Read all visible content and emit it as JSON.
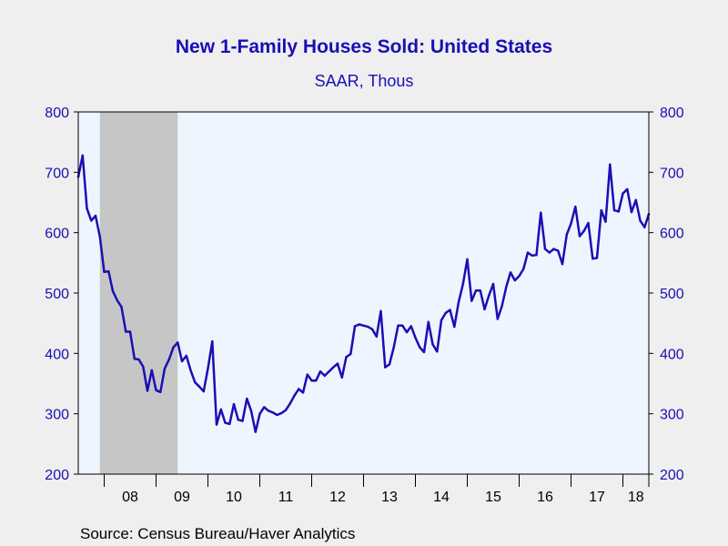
{
  "chart_data": {
    "type": "line",
    "title": "New 1-Family Houses Sold: United States",
    "subtitle": "SAAR, Thous",
    "ylim": [
      200,
      800
    ],
    "yticks": [
      200,
      300,
      400,
      500,
      600,
      700,
      800
    ],
    "ytick_labels": [
      "200",
      "300",
      "400",
      "500",
      "600",
      "700",
      "800"
    ],
    "xlim": [
      "2007-07",
      "2018-07"
    ],
    "xtick_labels": [
      "08",
      "09",
      "10",
      "11",
      "12",
      "13",
      "14",
      "15",
      "16",
      "17",
      "18"
    ],
    "recession_shading": {
      "start": "2007-12",
      "end": "2009-06"
    },
    "grid": false,
    "dual_y_axis": true,
    "colors": {
      "line": "#1a0fb4",
      "axis_text": "#1a0fb4",
      "plot_bg": "#eef5fe",
      "recession": "#c6c6c6",
      "page_bg": "#efefef"
    },
    "series": [
      {
        "x": [
          "2007-07",
          "2007-08",
          "2007-09",
          "2007-10",
          "2007-11",
          "2007-12",
          "2008-01",
          "2008-02",
          "2008-03",
          "2008-04",
          "2008-05",
          "2008-06",
          "2008-07",
          "2008-08",
          "2008-09",
          "2008-10",
          "2008-11",
          "2008-12",
          "2009-01",
          "2009-02",
          "2009-03",
          "2009-04",
          "2009-05",
          "2009-06",
          "2009-07",
          "2009-08",
          "2009-09",
          "2009-10",
          "2009-11",
          "2009-12",
          "2010-01",
          "2010-02",
          "2010-03",
          "2010-04",
          "2010-05",
          "2010-06",
          "2010-07",
          "2010-08",
          "2010-09",
          "2010-10",
          "2010-11",
          "2010-12",
          "2011-01",
          "2011-02",
          "2011-03",
          "2011-04",
          "2011-05",
          "2011-06",
          "2011-07",
          "2011-08",
          "2011-09",
          "2011-10",
          "2011-11",
          "2011-12",
          "2012-01",
          "2012-02",
          "2012-03",
          "2012-04",
          "2012-05",
          "2012-06",
          "2012-07",
          "2012-08",
          "2012-09",
          "2012-10",
          "2012-11",
          "2012-12",
          "2013-01",
          "2013-02",
          "2013-03",
          "2013-04",
          "2013-05",
          "2013-06",
          "2013-07",
          "2013-08",
          "2013-09",
          "2013-10",
          "2013-11",
          "2013-12",
          "2014-01",
          "2014-02",
          "2014-03",
          "2014-04",
          "2014-05",
          "2014-06",
          "2014-07",
          "2014-08",
          "2014-09",
          "2014-10",
          "2014-11",
          "2014-12",
          "2015-01",
          "2015-02",
          "2015-03",
          "2015-04",
          "2015-05",
          "2015-06",
          "2015-07",
          "2015-08",
          "2015-09",
          "2015-10",
          "2015-11",
          "2015-12",
          "2016-01",
          "2016-02",
          "2016-03",
          "2016-04",
          "2016-05",
          "2016-06",
          "2016-07",
          "2016-08",
          "2016-09",
          "2016-10",
          "2016-11",
          "2016-12",
          "2017-01",
          "2017-02",
          "2017-03",
          "2017-04",
          "2017-05",
          "2017-06",
          "2017-07",
          "2017-08",
          "2017-09",
          "2017-10",
          "2017-11",
          "2017-12",
          "2018-01",
          "2018-02",
          "2018-03",
          "2018-04",
          "2018-05",
          "2018-06",
          "2018-07"
        ],
        "values": [
          692,
          728,
          640,
          620,
          628,
          593,
          535,
          536,
          503,
          488,
          477,
          436,
          436,
          391,
          390,
          378,
          338,
          372,
          339,
          336,
          375,
          390,
          410,
          418,
          387,
          396,
          372,
          352,
          345,
          337,
          375,
          420,
          282,
          307,
          285,
          283,
          316,
          290,
          288,
          325,
          305,
          270,
          300,
          311,
          305,
          302,
          298,
          301,
          306,
          317,
          330,
          341,
          335,
          365,
          355,
          355,
          370,
          363,
          370,
          377,
          383,
          360,
          394,
          399,
          445,
          448,
          446,
          444,
          440,
          428,
          470,
          377,
          382,
          410,
          446,
          446,
          435,
          445,
          426,
          410,
          402,
          452,
          415,
          403,
          455,
          467,
          472,
          444,
          485,
          515,
          556,
          487,
          504,
          504,
          473,
          496,
          515,
          457,
          478,
          510,
          534,
          521,
          528,
          540,
          567,
          562,
          563,
          633,
          573,
          567,
          573,
          570,
          548,
          597,
          615,
          643,
          594,
          603,
          616,
          557,
          558,
          637,
          618,
          713,
          637,
          635,
          665,
          672,
          634,
          654,
          620,
          609,
          631
        ]
      }
    ]
  },
  "source": "Source:  Census Bureau/Haver Analytics"
}
